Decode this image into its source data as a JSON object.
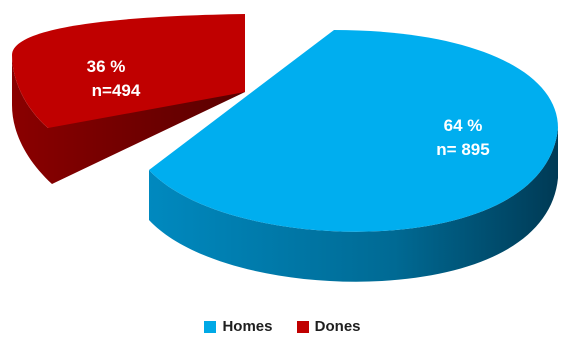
{
  "chart_data": {
    "type": "pie",
    "title": "",
    "legend_position": "bottom",
    "slices": [
      {
        "name": "Homes",
        "percent": 64,
        "percent_label": "64 %",
        "count_label": "n= 895",
        "value": 895,
        "color": "#00a9e6",
        "side_color": "#005d86",
        "exploded": false
      },
      {
        "name": "Dones",
        "percent": 36,
        "percent_label": "36 %",
        "count_label": "n=494",
        "value": 494,
        "color": "#c00000",
        "side_color": "#6b0000",
        "exploded": true
      }
    ]
  }
}
